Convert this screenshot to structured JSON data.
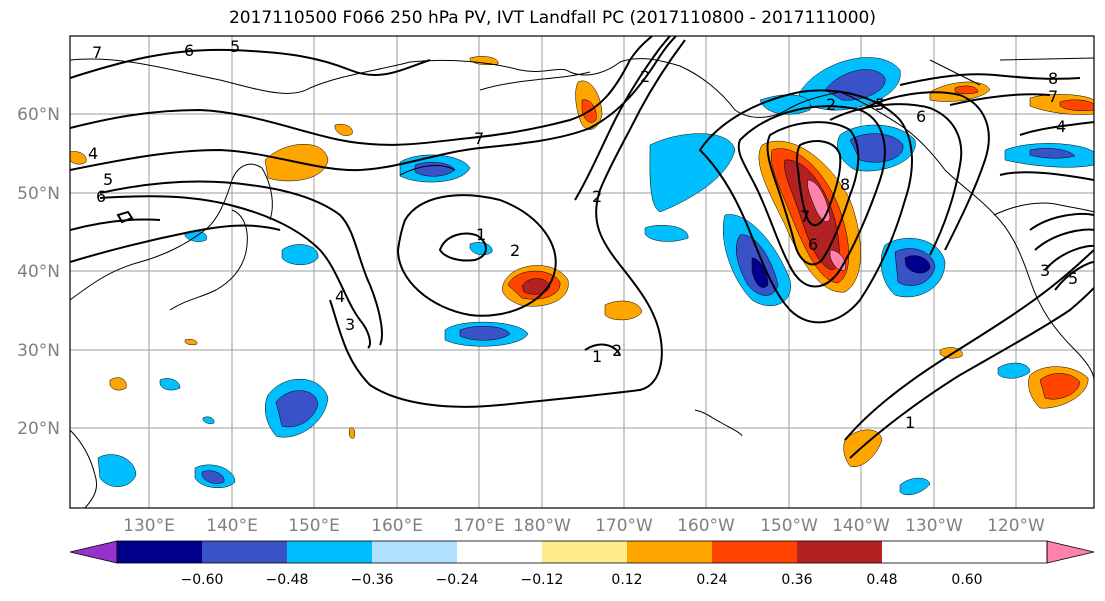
{
  "title": "2017110500 F066 250 hPa PV, IVT Landfall PC (2017110800 - 2017111000)",
  "lat_labels": [
    "60°N",
    "50°N",
    "40°N",
    "30°N",
    "20°N"
  ],
  "lon_labels": [
    "130°E",
    "140°E",
    "150°E",
    "160°E",
    "170°E",
    "180°W",
    "170°W",
    "160°W",
    "150°W",
    "140°W",
    "130°W",
    "120°W"
  ],
  "colorbar": {
    "tick_labels": [
      "−0.60",
      "−0.48",
      "−0.36",
      "−0.24",
      "−0.12",
      "0.12",
      "0.24",
      "0.36",
      "0.48",
      "0.60"
    ],
    "colors": [
      "#9932cc",
      "#00008b",
      "#3a52c8",
      "#00bfff",
      "#b0e2ff",
      "#ffffff",
      "#ffec8b",
      "#ffa500",
      "#ff4500",
      "#b22222",
      "#ff82ab"
    ]
  },
  "contour_labels": [
    "7",
    "6",
    "5",
    "4",
    "5",
    "6",
    "7",
    "2",
    "1",
    "2",
    "4",
    "3",
    "2",
    "1",
    "2",
    "7",
    "6",
    "8",
    "2",
    "5",
    "6",
    "1",
    "8",
    "7",
    "4",
    "5",
    "3"
  ]
}
